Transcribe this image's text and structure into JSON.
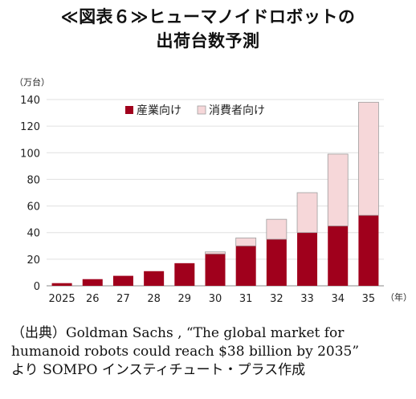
{
  "title": {
    "line1": "≪図表６≫ヒューマノイドロボットの",
    "line2": "出荷台数予測"
  },
  "source": {
    "line1": "（出典）Goldman Sachs , “The global market for",
    "line2": "humanoid robots could reach $38 billion by 2035”",
    "line3": "より SOMPO インスティチュート・プラス作成"
  },
  "colors": {
    "industrial": "#a0001c",
    "consumer": "#f6d7d9",
    "consumer_border": "#9e9e9e",
    "grid": "#e0e0e0",
    "axis": "#888888"
  },
  "chart_data": {
    "type": "bar",
    "stacked": true,
    "y_unit": "（万台）",
    "x_unit": "（年）",
    "categories": [
      "2025",
      "26",
      "27",
      "28",
      "29",
      "30",
      "31",
      "32",
      "33",
      "34",
      "35"
    ],
    "series": [
      {
        "name": "産業向け",
        "values": [
          2,
          5,
          7.5,
          11,
          17,
          24,
          30,
          35,
          40,
          45,
          53
        ]
      },
      {
        "name": "消費者向け",
        "values": [
          0,
          0,
          0,
          0,
          0,
          1.5,
          6,
          15,
          30,
          54,
          85
        ]
      }
    ],
    "ylim": [
      0,
      140
    ],
    "yticks": [
      0,
      20,
      40,
      60,
      80,
      100,
      120,
      140
    ],
    "grid": true,
    "legend": "top-left"
  }
}
